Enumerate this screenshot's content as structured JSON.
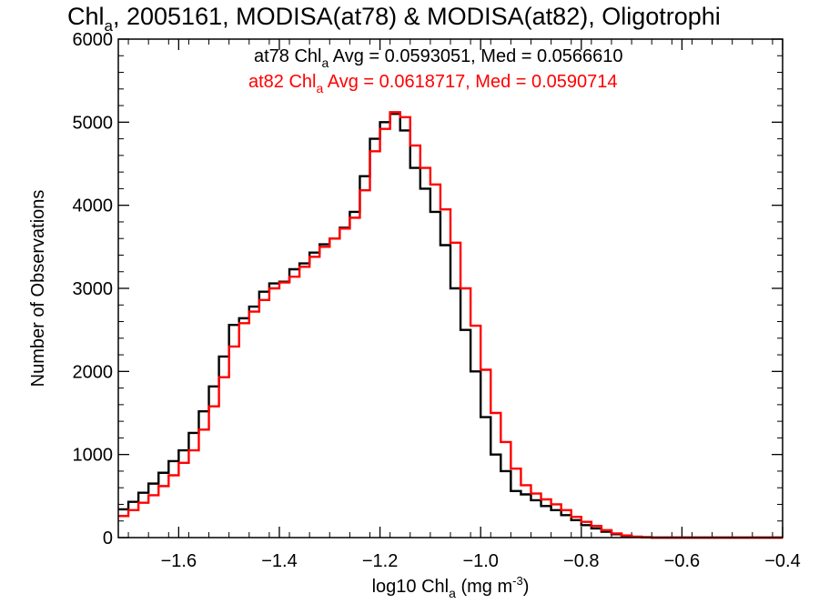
{
  "chart_data": {
    "type": "line",
    "step": true,
    "title": {
      "prefix": "Chl",
      "sub": "a",
      "rest": ", 2005161, MODISA(at78) & MODISA(at82), Oligotrophi"
    },
    "xlabel": {
      "prefix": "log10 Chl",
      "sub": "a",
      "mid": " (mg m",
      "sup": "-3",
      "end": ")"
    },
    "ylabel": "Number of Observations",
    "xlim": [
      -1.72,
      -0.4
    ],
    "ylim": [
      0,
      6000
    ],
    "xticks": [
      {
        "v": -1.6,
        "label": "−1.6"
      },
      {
        "v": -1.4,
        "label": "−1.4"
      },
      {
        "v": -1.2,
        "label": "−1.2"
      },
      {
        "v": -1.0,
        "label": "−1.0"
      },
      {
        "v": -0.8,
        "label": "−0.8"
      },
      {
        "v": -0.6,
        "label": "−0.6"
      },
      {
        "v": -0.4,
        "label": "−0.4"
      }
    ],
    "yticks": [
      {
        "v": 0,
        "label": "0"
      },
      {
        "v": 1000,
        "label": "1000"
      },
      {
        "v": 2000,
        "label": "2000"
      },
      {
        "v": 3000,
        "label": "3000"
      },
      {
        "v": 4000,
        "label": "4000"
      },
      {
        "v": 5000,
        "label": "5000"
      },
      {
        "v": 6000,
        "label": "6000"
      }
    ],
    "annotations": [
      {
        "prefix": "at78 Chl",
        "sub": "a",
        "rest": " Avg = 0.0593051, Med = 0.0566610",
        "color": "#000000"
      },
      {
        "prefix": "at82 Chl",
        "sub": "a",
        "rest": " Avg = 0.0618717, Med = 0.0590714",
        "color": "#ff0000"
      }
    ],
    "series": [
      {
        "label": "at78",
        "color": "#000000",
        "x": [
          -1.72,
          -1.7,
          -1.68,
          -1.66,
          -1.64,
          -1.62,
          -1.6,
          -1.58,
          -1.56,
          -1.54,
          -1.52,
          -1.5,
          -1.48,
          -1.46,
          -1.44,
          -1.42,
          -1.4,
          -1.38,
          -1.36,
          -1.34,
          -1.32,
          -1.3,
          -1.28,
          -1.26,
          -1.24,
          -1.22,
          -1.2,
          -1.18,
          -1.16,
          -1.14,
          -1.12,
          -1.1,
          -1.08,
          -1.06,
          -1.04,
          -1.02,
          -1.0,
          -0.98,
          -0.96,
          -0.94,
          -0.92,
          -0.9,
          -0.88,
          -0.86,
          -0.84,
          -0.82,
          -0.8,
          -0.78,
          -0.76,
          -0.74,
          -0.72,
          -0.7,
          -0.68,
          -0.66,
          -0.6,
          -0.5,
          -0.4
        ],
        "y": [
          340,
          430,
          540,
          650,
          780,
          920,
          1050,
          1260,
          1520,
          1820,
          2180,
          2560,
          2640,
          2780,
          2960,
          3060,
          3080,
          3230,
          3300,
          3430,
          3530,
          3600,
          3730,
          3920,
          4350,
          4800,
          5000,
          5100,
          4900,
          4450,
          4200,
          3920,
          3520,
          3000,
          2500,
          2000,
          1450,
          1000,
          800,
          560,
          520,
          450,
          380,
          330,
          270,
          210,
          150,
          110,
          70,
          40,
          20,
          10,
          5,
          0,
          0,
          0,
          0
        ]
      },
      {
        "label": "at82",
        "color": "#ff0000",
        "x": [
          -1.72,
          -1.7,
          -1.68,
          -1.66,
          -1.64,
          -1.62,
          -1.6,
          -1.58,
          -1.56,
          -1.54,
          -1.52,
          -1.5,
          -1.48,
          -1.46,
          -1.44,
          -1.42,
          -1.4,
          -1.38,
          -1.36,
          -1.34,
          -1.32,
          -1.3,
          -1.28,
          -1.26,
          -1.24,
          -1.22,
          -1.2,
          -1.18,
          -1.16,
          -1.14,
          -1.12,
          -1.1,
          -1.08,
          -1.06,
          -1.04,
          -1.02,
          -1.0,
          -0.98,
          -0.96,
          -0.94,
          -0.92,
          -0.9,
          -0.88,
          -0.86,
          -0.84,
          -0.82,
          -0.8,
          -0.78,
          -0.76,
          -0.74,
          -0.72,
          -0.7,
          -0.68,
          -0.66,
          -0.6,
          -0.5,
          -0.4
        ],
        "y": [
          260,
          330,
          420,
          510,
          620,
          750,
          900,
          1050,
          1300,
          1580,
          1930,
          2300,
          2580,
          2720,
          2860,
          3000,
          3070,
          3140,
          3260,
          3380,
          3500,
          3600,
          3720,
          3850,
          4180,
          4650,
          4920,
          5120,
          5060,
          4720,
          4450,
          4250,
          3950,
          3550,
          3000,
          2550,
          2020,
          1500,
          1150,
          830,
          630,
          530,
          460,
          400,
          330,
          250,
          190,
          140,
          90,
          50,
          25,
          10,
          5,
          0,
          0,
          0,
          0
        ]
      }
    ]
  }
}
